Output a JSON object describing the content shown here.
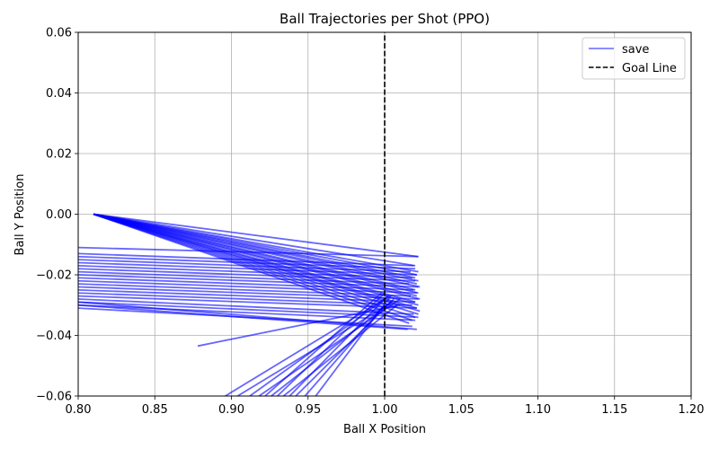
{
  "chart_data": {
    "type": "line",
    "title": "Ball Trajectories per Shot (PPO)",
    "xlabel": "Ball X Position",
    "ylabel": "Ball Y Position",
    "xlim": [
      0.8,
      1.2
    ],
    "ylim": [
      -0.06,
      0.06
    ],
    "xticks": [
      "0.80",
      "0.85",
      "0.90",
      "0.95",
      "1.00",
      "1.05",
      "1.10",
      "1.15",
      "1.20"
    ],
    "yticks": [
      "−0.06",
      "−0.04",
      "−0.02",
      "0.00",
      "0.02",
      "0.04",
      "0.06"
    ],
    "grid": true,
    "legend_position": "top-right",
    "colors": {
      "trajectory": "#0000ff",
      "goal_line": "#000000",
      "grid": "#b0b0b0"
    },
    "series": [
      {
        "name": "save",
        "style": "solid",
        "opacity": 0.6,
        "segments": [
          [
            [
              0.81,
              0.0
            ],
            [
              1.022,
              -0.014
            ]
          ],
          [
            [
              0.81,
              0.0
            ],
            [
              1.02,
              -0.017
            ]
          ],
          [
            [
              0.81,
              0.0
            ],
            [
              1.022,
              -0.019
            ]
          ],
          [
            [
              0.81,
              0.0
            ],
            [
              1.021,
              -0.02
            ]
          ],
          [
            [
              0.81,
              0.0
            ],
            [
              1.02,
              -0.021
            ]
          ],
          [
            [
              0.81,
              0.0
            ],
            [
              1.022,
              -0.022
            ]
          ],
          [
            [
              0.81,
              0.0
            ],
            [
              1.021,
              -0.023
            ]
          ],
          [
            [
              0.81,
              0.0
            ],
            [
              1.023,
              -0.024
            ]
          ],
          [
            [
              0.81,
              0.0
            ],
            [
              1.02,
              -0.025
            ]
          ],
          [
            [
              0.81,
              0.0
            ],
            [
              1.022,
              -0.026
            ]
          ],
          [
            [
              0.81,
              0.0
            ],
            [
              1.021,
              -0.027
            ]
          ],
          [
            [
              0.81,
              0.0
            ],
            [
              1.023,
              -0.028
            ]
          ],
          [
            [
              0.81,
              0.0
            ],
            [
              1.02,
              -0.029
            ]
          ],
          [
            [
              0.81,
              0.0
            ],
            [
              1.022,
              -0.03
            ]
          ],
          [
            [
              0.81,
              0.0
            ],
            [
              1.021,
              -0.031
            ]
          ],
          [
            [
              0.81,
              0.0
            ],
            [
              1.023,
              -0.032
            ]
          ],
          [
            [
              0.81,
              0.0
            ],
            [
              1.022,
              -0.033
            ]
          ],
          [
            [
              0.81,
              0.0
            ],
            [
              1.02,
              -0.034
            ]
          ],
          [
            [
              0.81,
              0.0
            ],
            [
              1.018,
              -0.035
            ]
          ],
          [
            [
              0.81,
              0.0
            ],
            [
              1.016,
              -0.036
            ]
          ],
          [
            [
              0.8,
              -0.011
            ],
            [
              1.022,
              -0.014
            ]
          ],
          [
            [
              0.8,
              -0.013
            ],
            [
              1.019,
              -0.017
            ]
          ],
          [
            [
              0.8,
              -0.014
            ],
            [
              1.02,
              -0.018
            ]
          ],
          [
            [
              0.8,
              -0.015
            ],
            [
              1.017,
              -0.019
            ]
          ],
          [
            [
              0.8,
              -0.016
            ],
            [
              1.021,
              -0.02
            ]
          ],
          [
            [
              0.8,
              -0.017
            ],
            [
              1.018,
              -0.021
            ]
          ],
          [
            [
              0.8,
              -0.018
            ],
            [
              1.02,
              -0.022
            ]
          ],
          [
            [
              0.8,
              -0.019
            ],
            [
              1.016,
              -0.023
            ]
          ],
          [
            [
              0.8,
              -0.02
            ],
            [
              1.022,
              -0.024
            ]
          ],
          [
            [
              0.8,
              -0.021
            ],
            [
              1.019,
              -0.025
            ]
          ],
          [
            [
              0.8,
              -0.022
            ],
            [
              1.021,
              -0.026
            ]
          ],
          [
            [
              0.8,
              -0.023
            ],
            [
              1.017,
              -0.027
            ]
          ],
          [
            [
              0.8,
              -0.024
            ],
            [
              1.022,
              -0.028
            ]
          ],
          [
            [
              0.8,
              -0.025
            ],
            [
              1.02,
              -0.029
            ]
          ],
          [
            [
              0.8,
              -0.026
            ],
            [
              1.018,
              -0.03
            ]
          ],
          [
            [
              0.8,
              -0.027
            ],
            [
              1.021,
              -0.031
            ]
          ],
          [
            [
              0.8,
              -0.028
            ],
            [
              1.019,
              -0.033
            ]
          ],
          [
            [
              0.8,
              -0.029
            ],
            [
              1.022,
              -0.034
            ]
          ],
          [
            [
              0.8,
              -0.03
            ],
            [
              1.02,
              -0.035
            ]
          ],
          [
            [
              0.8,
              -0.031
            ],
            [
              1.018,
              -0.037
            ]
          ],
          [
            [
              0.8,
              -0.03
            ],
            [
              1.015,
              -0.038
            ]
          ],
          [
            [
              0.8,
              -0.029
            ],
            [
              1.021,
              -0.038
            ]
          ],
          [
            [
              0.878,
              -0.0435
            ],
            [
              1.01,
              -0.03
            ]
          ],
          [
            [
              0.896,
              -0.06
            ],
            [
              1.0,
              -0.028
            ]
          ],
          [
            [
              0.904,
              -0.06
            ],
            [
              1.005,
              -0.029
            ]
          ],
          [
            [
              0.912,
              -0.06
            ],
            [
              1.003,
              -0.027
            ]
          ],
          [
            [
              0.918,
              -0.06
            ],
            [
              1.01,
              -0.028
            ]
          ],
          [
            [
              0.922,
              -0.06
            ],
            [
              0.998,
              -0.026
            ]
          ],
          [
            [
              0.926,
              -0.06
            ],
            [
              1.004,
              -0.029
            ]
          ],
          [
            [
              0.93,
              -0.06
            ],
            [
              1.0,
              -0.026
            ]
          ],
          [
            [
              0.934,
              -0.06
            ],
            [
              1.008,
              -0.03
            ]
          ],
          [
            [
              0.938,
              -0.06
            ],
            [
              1.002,
              -0.027
            ]
          ],
          [
            [
              0.942,
              -0.06
            ],
            [
              1.006,
              -0.028
            ]
          ],
          [
            [
              0.948,
              -0.06
            ],
            [
              1.0,
              -0.03
            ]
          ],
          [
            [
              0.955,
              -0.06
            ],
            [
              1.004,
              -0.027
            ]
          ]
        ]
      },
      {
        "name": "Goal Line",
        "style": "dashed",
        "segments": [
          [
            [
              1.0,
              -0.06
            ],
            [
              1.0,
              0.06
            ]
          ]
        ]
      }
    ]
  }
}
